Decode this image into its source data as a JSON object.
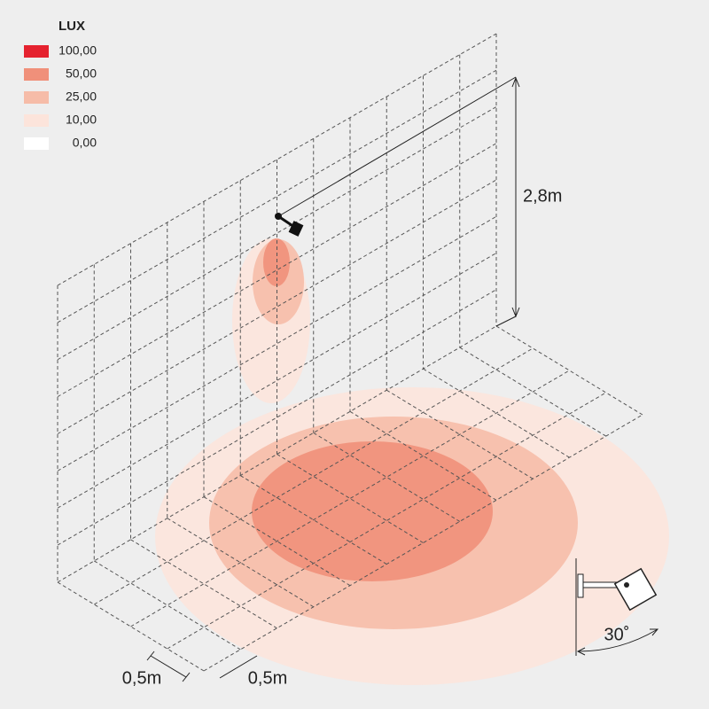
{
  "legend": {
    "title": "LUX",
    "levels": [
      {
        "label": "100,00",
        "color": "#e5222f"
      },
      {
        "label": "50,00",
        "color": "#f0907a"
      },
      {
        "label": "25,00",
        "color": "#f6bca8"
      },
      {
        "label": "10,00",
        "color": "#fce4db"
      },
      {
        "label": "0,00",
        "color": "#ffffff"
      }
    ]
  },
  "dimensions": {
    "height": "2,8m",
    "grid_x": "0,5m",
    "grid_y": "0,5m",
    "tilt": "30˚"
  }
}
